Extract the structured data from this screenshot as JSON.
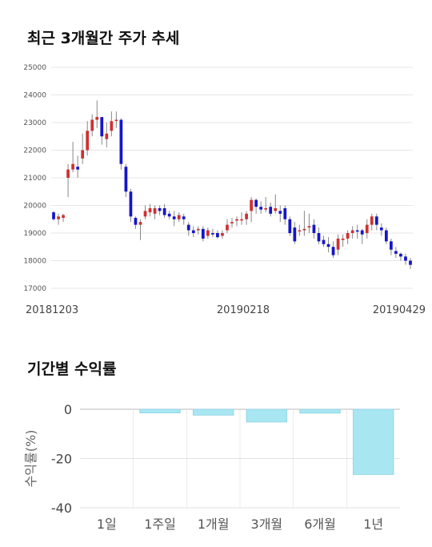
{
  "sections": {
    "price_title": "최근 3개월간 주가 추세",
    "returns_title": "기간별 수익률"
  },
  "colors": {
    "up": "#d03030",
    "down": "#1515c8",
    "bar": "#a8e6f2",
    "grid": "#e6e6e6"
  },
  "chart_data": [
    {
      "type": "candlestick",
      "title": "최근 3개월간 주가 추세",
      "ylim": [
        17000,
        25000
      ],
      "yticks": [
        17000,
        18000,
        19000,
        20000,
        21000,
        22000,
        23000,
        24000,
        25000
      ],
      "xtick_labels": [
        "20181203",
        "20190218",
        "20190429"
      ],
      "grid": true,
      "candles": [
        [
          19750,
          19500,
          19800,
          19450
        ],
        [
          19500,
          19600,
          19700,
          19300
        ],
        [
          19550,
          19650,
          19700,
          19400
        ],
        [
          21000,
          21300,
          21500,
          20300
        ],
        [
          21300,
          21500,
          22300,
          21200
        ],
        [
          21400,
          21300,
          21800,
          21000
        ],
        [
          21700,
          22000,
          22600,
          21500
        ],
        [
          22000,
          22700,
          23050,
          21800
        ],
        [
          22700,
          23100,
          23300,
          22500
        ],
        [
          23100,
          23200,
          23800,
          22800
        ],
        [
          23200,
          22500,
          23200,
          22200
        ],
        [
          22400,
          22600,
          23000,
          22100
        ],
        [
          22700,
          23050,
          23400,
          22500
        ],
        [
          23100,
          23100,
          23400,
          22800
        ],
        [
          23100,
          21500,
          23150,
          21300
        ],
        [
          21400,
          20500,
          21500,
          20300
        ],
        [
          20500,
          19600,
          20600,
          19400
        ],
        [
          19550,
          19300,
          19600,
          19150
        ],
        [
          19300,
          19400,
          19500,
          18750
        ],
        [
          19600,
          19800,
          20000,
          19500
        ],
        [
          19750,
          19900,
          20050,
          19600
        ],
        [
          19700,
          19900,
          20000,
          19500
        ],
        [
          19900,
          19800,
          20000,
          19650
        ],
        [
          19900,
          19650,
          20050,
          19550
        ],
        [
          19700,
          19600,
          19800,
          19500
        ],
        [
          19600,
          19500,
          19800,
          19250
        ],
        [
          19500,
          19650,
          19750,
          19400
        ],
        [
          19600,
          19500,
          19700,
          19300
        ],
        [
          19300,
          19100,
          19400,
          18900
        ],
        [
          19100,
          19000,
          19250,
          18850
        ],
        [
          19100,
          19150,
          19250,
          18950
        ],
        [
          19150,
          18800,
          19250,
          18700
        ],
        [
          18900,
          19100,
          19200,
          18800
        ],
        [
          19000,
          18950,
          19150,
          18850
        ],
        [
          19000,
          18850,
          19100,
          18800
        ],
        [
          18900,
          19000,
          19100,
          18800
        ],
        [
          19100,
          19300,
          19500,
          19000
        ],
        [
          19350,
          19400,
          19550,
          19200
        ],
        [
          19450,
          19500,
          19600,
          19250
        ],
        [
          19500,
          19500,
          19750,
          19300
        ],
        [
          19500,
          19700,
          19800,
          19300
        ],
        [
          19800,
          20200,
          20300,
          19400
        ],
        [
          20200,
          19950,
          20250,
          19700
        ],
        [
          19950,
          19850,
          20150,
          19700
        ],
        [
          19850,
          19900,
          20300,
          19750
        ],
        [
          19950,
          19700,
          20100,
          19600
        ],
        [
          19800,
          19900,
          20400,
          19700
        ],
        [
          19800,
          19700,
          20000,
          19400
        ],
        [
          19900,
          19500,
          20000,
          19300
        ],
        [
          19500,
          19000,
          19600,
          18900
        ],
        [
          19200,
          18700,
          19400,
          18600
        ],
        [
          19100,
          19100,
          19300,
          18900
        ],
        [
          19100,
          19150,
          19800,
          18900
        ],
        [
          19200,
          19250,
          19700,
          19000
        ],
        [
          19300,
          19000,
          19500,
          18800
        ],
        [
          19000,
          18700,
          19200,
          18600
        ],
        [
          18750,
          18600,
          18900,
          18500
        ],
        [
          18600,
          18500,
          18850,
          18300
        ],
        [
          18500,
          18200,
          18700,
          18100
        ],
        [
          18400,
          18800,
          18950,
          18200
        ],
        [
          18750,
          18800,
          18950,
          18500
        ],
        [
          18800,
          19000,
          19100,
          18600
        ],
        [
          19000,
          19100,
          19250,
          18800
        ],
        [
          19100,
          19050,
          19300,
          18800
        ],
        [
          19100,
          18950,
          19150,
          18600
        ],
        [
          19000,
          19300,
          19500,
          18800
        ],
        [
          19300,
          19600,
          19700,
          19100
        ],
        [
          19600,
          19300,
          19700,
          19100
        ],
        [
          19200,
          19100,
          19350,
          18900
        ],
        [
          19100,
          18700,
          19200,
          18600
        ],
        [
          18700,
          18400,
          18800,
          18200
        ],
        [
          18350,
          18250,
          18500,
          18100
        ],
        [
          18250,
          18150,
          18300,
          18000
        ],
        [
          18150,
          18000,
          18250,
          17850
        ],
        [
          18000,
          17850,
          18100,
          17700
        ]
      ]
    },
    {
      "type": "bar",
      "title": "기간별 수익률",
      "ylabel": "수익률(%)",
      "categories": [
        "1일",
        "1주일",
        "1개월",
        "3개월",
        "6개월",
        "1년"
      ],
      "values": [
        0,
        -1.5,
        -2.4,
        -5.2,
        -1.6,
        -26.5
      ],
      "ylim": [
        -40,
        0
      ],
      "yticks": [
        0,
        -20,
        -40
      ],
      "grid": true
    }
  ]
}
